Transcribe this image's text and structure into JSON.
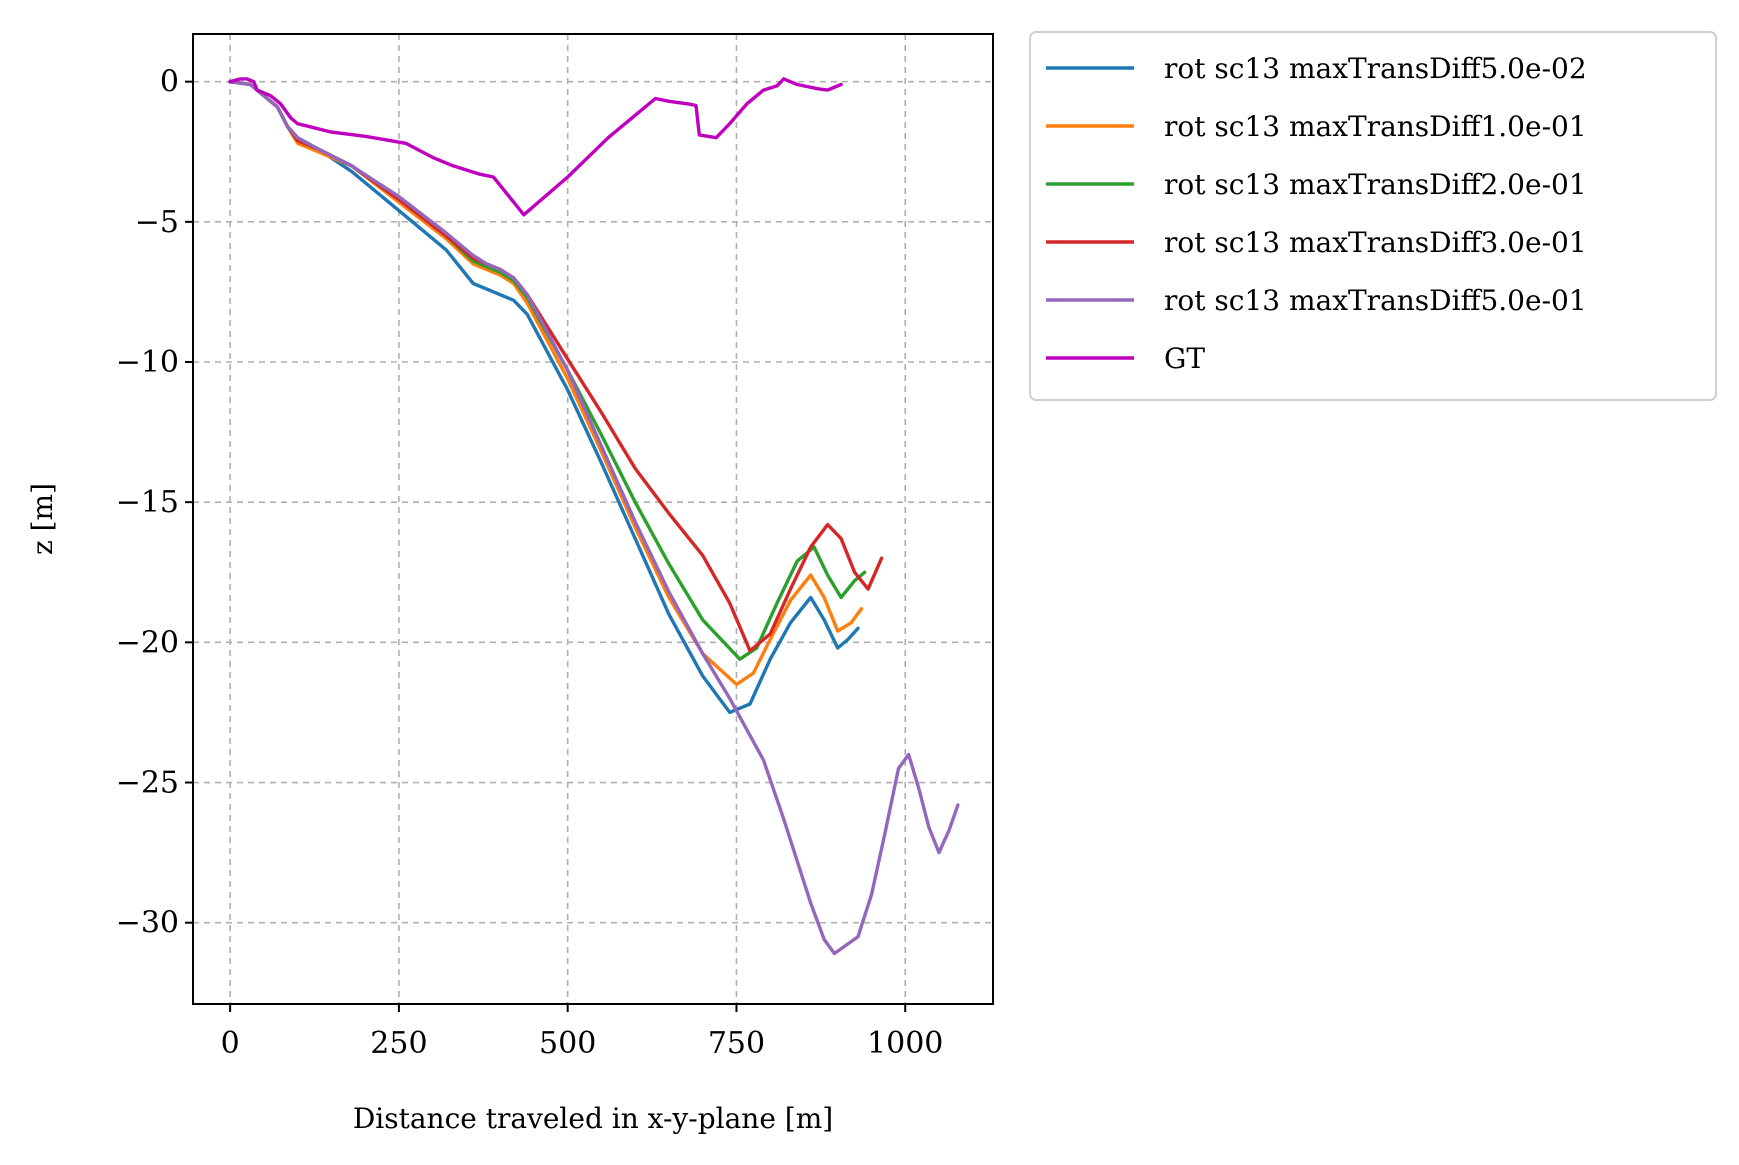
{
  "chart_data": {
    "type": "line",
    "xlabel": "Distance traveled in x-y-plane [m]",
    "ylabel": "z [m]",
    "xlim": [
      -55,
      1130
    ],
    "ylim": [
      -32.9,
      1.7
    ],
    "xticks": [
      0,
      250,
      500,
      750,
      1000
    ],
    "xtick_labels": [
      "0",
      "250",
      "500",
      "750",
      "1000"
    ],
    "yticks": [
      0,
      -5,
      -10,
      -15,
      -20,
      -25,
      -30
    ],
    "ytick_labels": [
      "0",
      "−5",
      "−10",
      "−15",
      "−20",
      "−25",
      "−30"
    ],
    "grid": true,
    "legend_position": "outside upper right",
    "series": [
      {
        "name": "rot sc13 maxTransDiff5.0e-02",
        "color": "#1f77b4",
        "points": [
          [
            0,
            0
          ],
          [
            30,
            -0.1
          ],
          [
            50,
            -0.5
          ],
          [
            70,
            -0.9
          ],
          [
            85,
            -1.6
          ],
          [
            100,
            -2.0
          ],
          [
            130,
            -2.4
          ],
          [
            180,
            -3.2
          ],
          [
            250,
            -4.6
          ],
          [
            320,
            -6.0
          ],
          [
            360,
            -7.2
          ],
          [
            380,
            -7.4
          ],
          [
            400,
            -7.6
          ],
          [
            420,
            -7.8
          ],
          [
            440,
            -8.3
          ],
          [
            500,
            -11.0
          ],
          [
            550,
            -13.6
          ],
          [
            600,
            -16.3
          ],
          [
            650,
            -19.0
          ],
          [
            700,
            -21.2
          ],
          [
            740,
            -22.5
          ],
          [
            770,
            -22.2
          ],
          [
            800,
            -20.6
          ],
          [
            830,
            -19.3
          ],
          [
            860,
            -18.4
          ],
          [
            880,
            -19.2
          ],
          [
            900,
            -20.2
          ],
          [
            915,
            -19.9
          ],
          [
            930,
            -19.5
          ]
        ]
      },
      {
        "name": "rot sc13 maxTransDiff1.0e-01",
        "color": "#ff7f0e",
        "points": [
          [
            0,
            0
          ],
          [
            30,
            -0.1
          ],
          [
            50,
            -0.5
          ],
          [
            70,
            -0.9
          ],
          [
            85,
            -1.6
          ],
          [
            100,
            -2.2
          ],
          [
            130,
            -2.5
          ],
          [
            180,
            -3.0
          ],
          [
            250,
            -4.3
          ],
          [
            320,
            -5.6
          ],
          [
            360,
            -6.5
          ],
          [
            380,
            -6.7
          ],
          [
            400,
            -6.9
          ],
          [
            420,
            -7.2
          ],
          [
            440,
            -7.9
          ],
          [
            500,
            -10.6
          ],
          [
            550,
            -13.2
          ],
          [
            600,
            -15.9
          ],
          [
            650,
            -18.4
          ],
          [
            700,
            -20.4
          ],
          [
            750,
            -21.5
          ],
          [
            775,
            -21.1
          ],
          [
            800,
            -19.9
          ],
          [
            830,
            -18.5
          ],
          [
            860,
            -17.6
          ],
          [
            880,
            -18.4
          ],
          [
            900,
            -19.6
          ],
          [
            920,
            -19.3
          ],
          [
            935,
            -18.8
          ]
        ]
      },
      {
        "name": "rot sc13 maxTransDiff2.0e-01",
        "color": "#2ca02c",
        "points": [
          [
            0,
            0
          ],
          [
            30,
            -0.1
          ],
          [
            50,
            -0.5
          ],
          [
            70,
            -0.9
          ],
          [
            85,
            -1.6
          ],
          [
            100,
            -2.1
          ],
          [
            130,
            -2.4
          ],
          [
            180,
            -3.0
          ],
          [
            250,
            -4.2
          ],
          [
            320,
            -5.5
          ],
          [
            360,
            -6.4
          ],
          [
            380,
            -6.6
          ],
          [
            400,
            -6.8
          ],
          [
            420,
            -7.1
          ],
          [
            440,
            -7.7
          ],
          [
            500,
            -10.3
          ],
          [
            550,
            -12.6
          ],
          [
            600,
            -15.0
          ],
          [
            650,
            -17.2
          ],
          [
            700,
            -19.2
          ],
          [
            755,
            -20.6
          ],
          [
            780,
            -20.2
          ],
          [
            810,
            -18.6
          ],
          [
            840,
            -17.1
          ],
          [
            865,
            -16.6
          ],
          [
            885,
            -17.6
          ],
          [
            905,
            -18.4
          ],
          [
            925,
            -17.8
          ],
          [
            940,
            -17.5
          ]
        ]
      },
      {
        "name": "rot sc13 maxTransDiff3.0e-01",
        "color": "#d62728",
        "points": [
          [
            0,
            0
          ],
          [
            30,
            -0.1
          ],
          [
            50,
            -0.5
          ],
          [
            70,
            -0.9
          ],
          [
            85,
            -1.6
          ],
          [
            100,
            -2.1
          ],
          [
            130,
            -2.4
          ],
          [
            180,
            -3.0
          ],
          [
            250,
            -4.2
          ],
          [
            320,
            -5.5
          ],
          [
            360,
            -6.3
          ],
          [
            380,
            -6.5
          ],
          [
            400,
            -6.7
          ],
          [
            420,
            -7.0
          ],
          [
            440,
            -7.6
          ],
          [
            500,
            -9.9
          ],
          [
            550,
            -11.8
          ],
          [
            600,
            -13.8
          ],
          [
            650,
            -15.4
          ],
          [
            700,
            -16.9
          ],
          [
            740,
            -18.6
          ],
          [
            770,
            -20.3
          ],
          [
            800,
            -19.7
          ],
          [
            830,
            -18.1
          ],
          [
            860,
            -16.6
          ],
          [
            885,
            -15.8
          ],
          [
            905,
            -16.3
          ],
          [
            925,
            -17.5
          ],
          [
            945,
            -18.1
          ],
          [
            965,
            -17.0
          ]
        ]
      },
      {
        "name": "rot sc13 maxTransDiff5.0e-01",
        "color": "#9467bd",
        "points": [
          [
            0,
            0
          ],
          [
            30,
            -0.1
          ],
          [
            50,
            -0.5
          ],
          [
            70,
            -0.9
          ],
          [
            85,
            -1.6
          ],
          [
            100,
            -2.0
          ],
          [
            130,
            -2.4
          ],
          [
            180,
            -3.0
          ],
          [
            250,
            -4.1
          ],
          [
            320,
            -5.4
          ],
          [
            360,
            -6.2
          ],
          [
            380,
            -6.5
          ],
          [
            400,
            -6.7
          ],
          [
            420,
            -7.0
          ],
          [
            440,
            -7.6
          ],
          [
            500,
            -10.3
          ],
          [
            550,
            -13.0
          ],
          [
            600,
            -15.7
          ],
          [
            650,
            -18.2
          ],
          [
            700,
            -20.4
          ],
          [
            740,
            -22.0
          ],
          [
            790,
            -24.2
          ],
          [
            820,
            -26.3
          ],
          [
            860,
            -29.3
          ],
          [
            880,
            -30.6
          ],
          [
            895,
            -31.1
          ],
          [
            930,
            -30.5
          ],
          [
            950,
            -29.0
          ],
          [
            970,
            -26.8
          ],
          [
            990,
            -24.5
          ],
          [
            1005,
            -24.0
          ],
          [
            1020,
            -25.2
          ],
          [
            1035,
            -26.6
          ],
          [
            1050,
            -27.5
          ],
          [
            1065,
            -26.7
          ],
          [
            1078,
            -25.8
          ]
        ]
      },
      {
        "name": "GT",
        "color": "#bf00bf",
        "points": [
          [
            0,
            0
          ],
          [
            15,
            0.1
          ],
          [
            25,
            0.1
          ],
          [
            35,
            0
          ],
          [
            40,
            -0.3
          ],
          [
            60,
            -0.5
          ],
          [
            75,
            -0.8
          ],
          [
            90,
            -1.3
          ],
          [
            100,
            -1.5
          ],
          [
            150,
            -1.8
          ],
          [
            200,
            -1.95
          ],
          [
            260,
            -2.2
          ],
          [
            300,
            -2.7
          ],
          [
            330,
            -3.0
          ],
          [
            370,
            -3.3
          ],
          [
            390,
            -3.4
          ],
          [
            400,
            -3.7
          ],
          [
            420,
            -4.3
          ],
          [
            435,
            -4.75
          ],
          [
            500,
            -3.4
          ],
          [
            560,
            -2.0
          ],
          [
            630,
            -0.6
          ],
          [
            650,
            -0.7
          ],
          [
            680,
            -0.8
          ],
          [
            690,
            -0.85
          ],
          [
            695,
            -1.9
          ],
          [
            720,
            -2.0
          ],
          [
            740,
            -1.5
          ],
          [
            765,
            -0.8
          ],
          [
            790,
            -0.3
          ],
          [
            810,
            -0.15
          ],
          [
            820,
            0.1
          ],
          [
            840,
            -0.1
          ],
          [
            870,
            -0.25
          ],
          [
            885,
            -0.3
          ],
          [
            905,
            -0.1
          ]
        ]
      }
    ]
  }
}
